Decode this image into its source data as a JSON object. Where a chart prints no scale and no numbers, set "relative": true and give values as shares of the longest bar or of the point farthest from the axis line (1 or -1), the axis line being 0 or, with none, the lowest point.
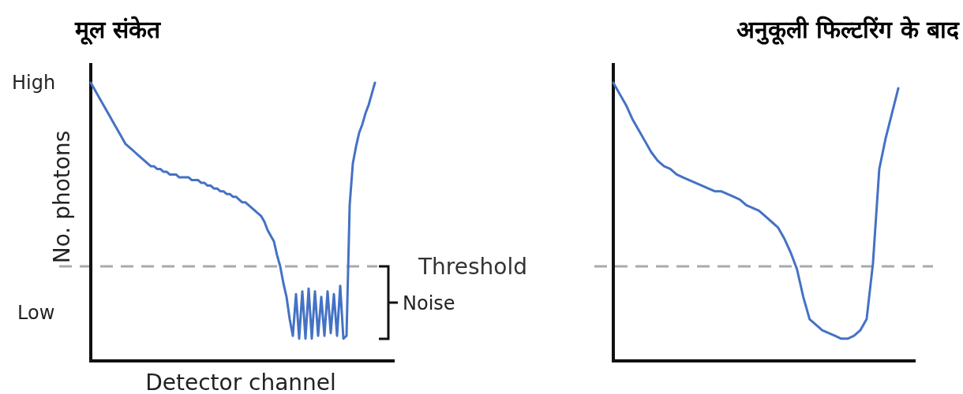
{
  "chart_data": [
    {
      "type": "line",
      "title": "मूल संकेत",
      "xlabel": "Detector channel",
      "ylabel": "No. photons",
      "relative": true,
      "categories": [
        null,
        null,
        null,
        null,
        null,
        null,
        null,
        null,
        null,
        null,
        null,
        null,
        null,
        null,
        null,
        null,
        null,
        null,
        null,
        null,
        null,
        null,
        null,
        null,
        null,
        null,
        null,
        null,
        null,
        null,
        null,
        null,
        null,
        null,
        null,
        null,
        null,
        null,
        null,
        null,
        null,
        null,
        null,
        null,
        null,
        null,
        null,
        null,
        null,
        null,
        null,
        null,
        null,
        null,
        null,
        null,
        null,
        null,
        null,
        null,
        null,
        null,
        null,
        null,
        null,
        null,
        null,
        null,
        null,
        null,
        null,
        null,
        null,
        null,
        null,
        null,
        null,
        null,
        null,
        null,
        null,
        null,
        null,
        null,
        null,
        null,
        null,
        null,
        null,
        null,
        null
      ],
      "series": [
        {
          "color": "#4472c4",
          "values": [
            1.0,
            0.98,
            0.96,
            0.94,
            0.92,
            0.9,
            0.88,
            0.86,
            0.84,
            0.82,
            0.8,
            0.78,
            0.77,
            0.76,
            0.75,
            0.74,
            0.73,
            0.72,
            0.71,
            0.7,
            0.7,
            0.69,
            0.69,
            0.68,
            0.68,
            0.67,
            0.67,
            0.67,
            0.66,
            0.66,
            0.66,
            0.66,
            0.65,
            0.65,
            0.65,
            0.64,
            0.64,
            0.63,
            0.63,
            0.62,
            0.62,
            0.61,
            0.61,
            0.6,
            0.6,
            0.59,
            0.59,
            0.58,
            0.57,
            0.57,
            0.56,
            0.55,
            0.54,
            0.53,
            0.52,
            0.5,
            0.47,
            0.45,
            0.43,
            0.38,
            0.34,
            0.28,
            0.23,
            0.15,
            0.09,
            0.24,
            0.08,
            0.25,
            0.08,
            0.26,
            0.08,
            0.25,
            0.09,
            0.23,
            0.09,
            0.25,
            0.1,
            0.24,
            0.09,
            0.27,
            0.08,
            0.09,
            0.56,
            0.71,
            0.77,
            0.82,
            0.85,
            0.89,
            0.92,
            0.96,
            1.0
          ]
        }
      ],
      "ref_lines": [
        {
          "axis": "y",
          "value": 0.34,
          "label": "Threshold",
          "color": "#aaaaaa",
          "line_style": "dashed"
        }
      ],
      "annotations": [
        "High",
        "Low",
        "Noise"
      ]
    },
    {
      "type": "line",
      "title": "अनुकूली फिल्टरिंग के बाद",
      "relative": true,
      "categories": [
        null,
        null,
        null,
        null,
        null,
        null,
        null,
        null,
        null,
        null,
        null,
        null,
        null,
        null,
        null,
        null,
        null,
        null,
        null,
        null,
        null,
        null,
        null,
        null,
        null,
        null,
        null,
        null,
        null,
        null,
        null,
        null,
        null,
        null,
        null,
        null,
        null,
        null,
        null,
        null,
        null,
        null,
        null,
        null,
        null,
        null
      ],
      "series": [
        {
          "color": "#4472c4",
          "values": [
            1.0,
            0.96,
            0.92,
            0.87,
            0.83,
            0.79,
            0.75,
            0.72,
            0.7,
            0.69,
            0.67,
            0.66,
            0.65,
            0.64,
            0.63,
            0.62,
            0.61,
            0.61,
            0.6,
            0.59,
            0.58,
            0.56,
            0.55,
            0.54,
            0.52,
            0.5,
            0.48,
            0.44,
            0.39,
            0.33,
            0.23,
            0.15,
            0.13,
            0.11,
            0.1,
            0.09,
            0.08,
            0.08,
            0.09,
            0.11,
            0.15,
            0.35,
            0.69,
            0.8,
            0.89,
            0.98
          ]
        }
      ],
      "ref_lines": [
        {
          "axis": "y",
          "value": 0.34,
          "color": "#aaaaaa",
          "line_style": "dashed"
        }
      ]
    }
  ]
}
